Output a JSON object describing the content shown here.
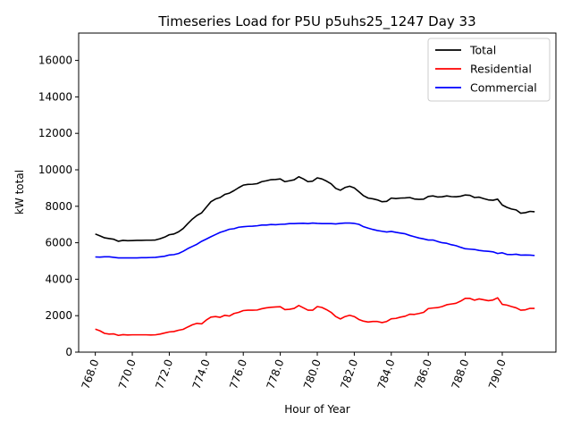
{
  "chart_data": {
    "type": "line",
    "title": "Timeseries Load for P5U p5uhs25_1247  Day 33",
    "xlabel": "Hour of Year",
    "ylabel": "kW total",
    "xlim": [
      767.1,
      792.9
    ],
    "ylim": [
      0,
      17500
    ],
    "x_ticks": [
      768,
      770,
      772,
      774,
      776,
      778,
      780,
      782,
      784,
      786,
      788,
      790
    ],
    "x_tick_labels": [
      "768.0",
      "770.0",
      "772.0",
      "774.0",
      "776.0",
      "778.0",
      "780.0",
      "782.0",
      "784.0",
      "786.0",
      "788.0",
      "790.0"
    ],
    "y_ticks": [
      0,
      2000,
      4000,
      6000,
      8000,
      10000,
      12000,
      14000,
      16000
    ],
    "y_tick_labels": [
      "0",
      "2000",
      "4000",
      "6000",
      "8000",
      "10000",
      "12000",
      "14000",
      "16000"
    ],
    "legend_position": "top-right",
    "x_start": 768,
    "x_step": 0.25,
    "series": [
      {
        "name": "Total",
        "color": "#000000",
        "values": [
          6480,
          6380,
          6270,
          6230,
          6190,
          6080,
          6130,
          6110,
          6120,
          6130,
          6130,
          6140,
          6140,
          6150,
          6220,
          6310,
          6440,
          6480,
          6600,
          6780,
          7050,
          7300,
          7500,
          7640,
          7950,
          8250,
          8400,
          8480,
          8650,
          8720,
          8860,
          9020,
          9160,
          9200,
          9210,
          9240,
          9350,
          9400,
          9460,
          9470,
          9500,
          9350,
          9400,
          9450,
          9620,
          9500,
          9350,
          9380,
          9560,
          9500,
          9380,
          9230,
          8980,
          8880,
          9030,
          9100,
          9010,
          8800,
          8580,
          8450,
          8410,
          8350,
          8250,
          8270,
          8450,
          8420,
          8450,
          8460,
          8480,
          8400,
          8380,
          8390,
          8540,
          8570,
          8510,
          8520,
          8570,
          8530,
          8520,
          8550,
          8620,
          8600,
          8480,
          8500,
          8420,
          8350,
          8330,
          8390,
          8070,
          7940,
          7850,
          7800,
          7620,
          7650,
          7720,
          7700
        ]
      },
      {
        "name": "Residential",
        "color": "#ff0000",
        "values": [
          1260,
          1170,
          1030,
          990,
          1000,
          920,
          960,
          940,
          950,
          950,
          950,
          950,
          940,
          950,
          990,
          1050,
          1110,
          1130,
          1200,
          1250,
          1380,
          1500,
          1580,
          1550,
          1760,
          1920,
          1950,
          1910,
          2020,
          1980,
          2120,
          2180,
          2280,
          2300,
          2300,
          2310,
          2380,
          2430,
          2460,
          2480,
          2490,
          2330,
          2350,
          2400,
          2560,
          2430,
          2300,
          2300,
          2500,
          2450,
          2330,
          2180,
          1950,
          1820,
          1950,
          2020,
          1950,
          1790,
          1700,
          1650,
          1680,
          1680,
          1620,
          1680,
          1830,
          1850,
          1920,
          1970,
          2080,
          2070,
          2120,
          2180,
          2390,
          2420,
          2440,
          2500,
          2600,
          2640,
          2680,
          2800,
          2950,
          2950,
          2850,
          2920,
          2870,
          2820,
          2860,
          2980,
          2620,
          2580,
          2500,
          2430,
          2300,
          2320,
          2400,
          2400
        ]
      },
      {
        "name": "Commercial",
        "color": "#0000ff",
        "values": [
          5220,
          5210,
          5230,
          5230,
          5200,
          5170,
          5170,
          5170,
          5170,
          5170,
          5180,
          5180,
          5190,
          5200,
          5230,
          5260,
          5330,
          5350,
          5410,
          5530,
          5680,
          5800,
          5920,
          6080,
          6200,
          6330,
          6450,
          6570,
          6650,
          6740,
          6770,
          6850,
          6880,
          6900,
          6910,
          6930,
          6970,
          6970,
          7000,
          6990,
          7010,
          7020,
          7050,
          7050,
          7060,
          7070,
          7050,
          7080,
          7060,
          7050,
          7050,
          7050,
          7030,
          7060,
          7080,
          7080,
          7060,
          7010,
          6880,
          6800,
          6730,
          6670,
          6630,
          6590,
          6620,
          6570,
          6530,
          6490,
          6400,
          6330,
          6260,
          6210,
          6150,
          6150,
          6070,
          6000,
          5970,
          5890,
          5840,
          5750,
          5670,
          5650,
          5630,
          5580,
          5550,
          5530,
          5500,
          5410,
          5450,
          5360,
          5350,
          5370,
          5320,
          5330,
          5320,
          5300
        ]
      }
    ]
  }
}
